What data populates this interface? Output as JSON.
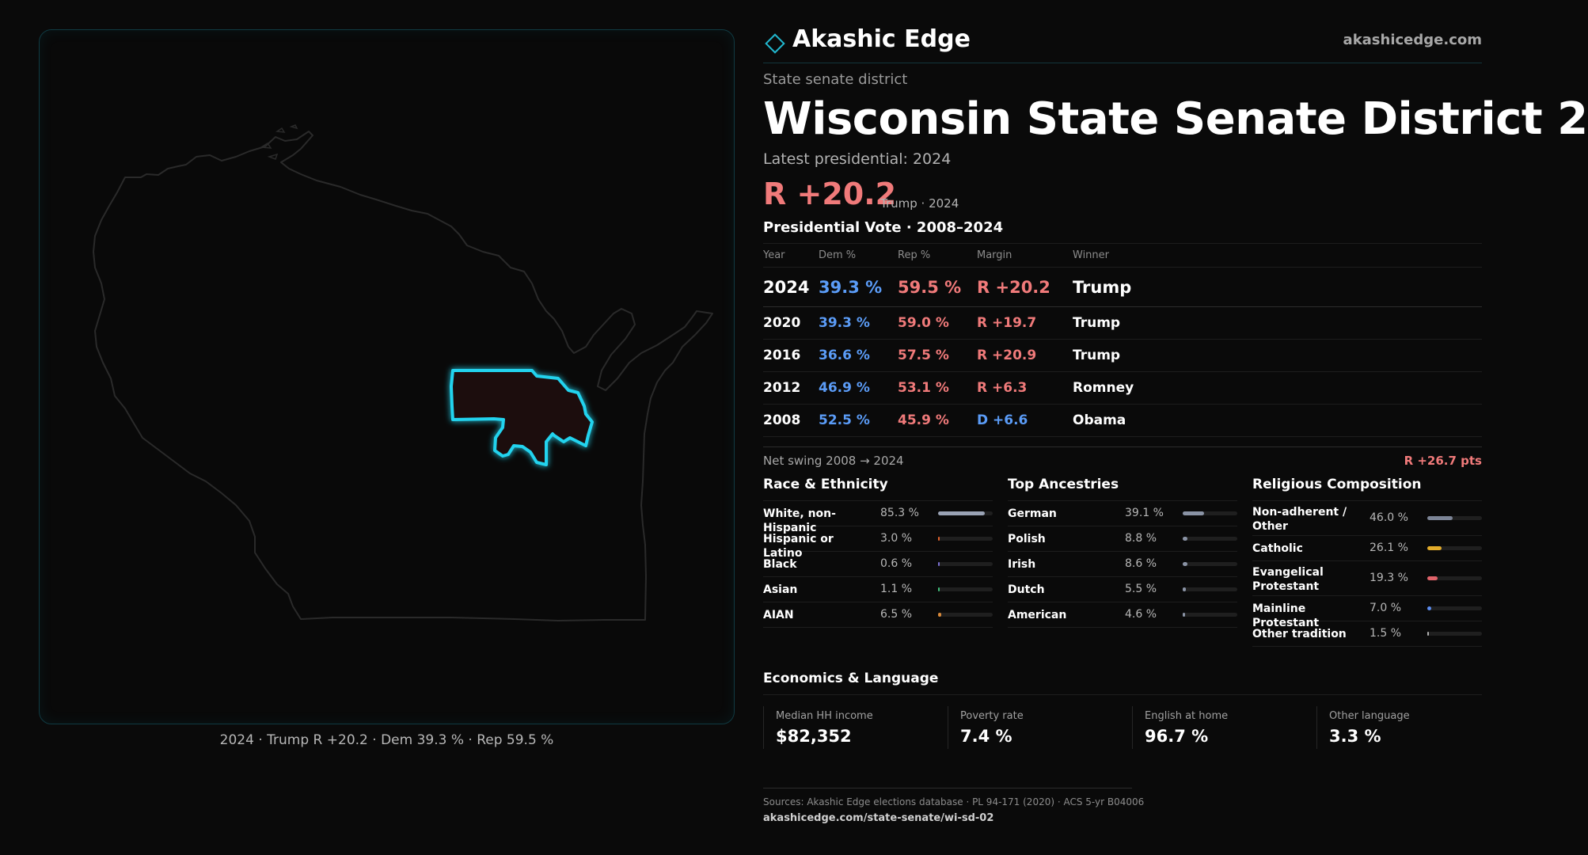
{
  "brand": {
    "name": "Akashic Edge",
    "url": "akashicedge.com"
  },
  "district": {
    "type_label": "State senate district",
    "title": "Wisconsin State Senate District 2",
    "latest_label": "Latest presidential: 2024",
    "margin": "R +20.2",
    "margin_sub": "Trump · 2024"
  },
  "presidential": {
    "heading": "Presidential Vote · 2008–2024",
    "columns": {
      "year": "Year",
      "dem": "Dem %",
      "rep": "Rep %",
      "margin": "Margin",
      "winner": "Winner"
    },
    "rows": [
      {
        "year": "2024",
        "dem": "39.3 %",
        "rep": "59.5 %",
        "margin": "R +20.2",
        "party": "rep",
        "winner": "Trump"
      },
      {
        "year": "2020",
        "dem": "39.3 %",
        "rep": "59.0 %",
        "margin": "R +19.7",
        "party": "rep",
        "winner": "Trump"
      },
      {
        "year": "2016",
        "dem": "36.6 %",
        "rep": "57.5 %",
        "margin": "R +20.9",
        "party": "rep",
        "winner": "Trump"
      },
      {
        "year": "2012",
        "dem": "46.9 %",
        "rep": "53.1 %",
        "margin": "R +6.3",
        "party": "rep",
        "winner": "Romney"
      },
      {
        "year": "2008",
        "dem": "52.5 %",
        "rep": "45.9 %",
        "margin": "D +6.6",
        "party": "dem",
        "winner": "Obama"
      }
    ],
    "swing_label": "Net swing 2008 → 2024",
    "swing_value": "R +26.7 pts"
  },
  "race": {
    "heading": "Race & Ethnicity",
    "items": [
      {
        "label": "White, non-Hispanic",
        "value": "85.3 %",
        "share": 0.853,
        "color": "#9aa3b5"
      },
      {
        "label": "Hispanic or Latino",
        "value": "3.0 %",
        "share": 0.03,
        "color": "#e0602a"
      },
      {
        "label": "Black",
        "value": "0.6 %",
        "share": 0.006,
        "color": "#7a6fd0"
      },
      {
        "label": "Asian",
        "value": "1.1 %",
        "share": 0.011,
        "color": "#3fbf7a"
      },
      {
        "label": "AIAN",
        "value": "6.5 %",
        "share": 0.065,
        "color": "#d98a3a"
      }
    ]
  },
  "ancestry": {
    "heading": "Top Ancestries",
    "items": [
      {
        "label": "German",
        "value": "39.1 %",
        "share": 0.391,
        "color": "#8a93a5"
      },
      {
        "label": "Polish",
        "value": "8.8 %",
        "share": 0.088,
        "color": "#8a93a5"
      },
      {
        "label": "Irish",
        "value": "8.6 %",
        "share": 0.086,
        "color": "#8a93a5"
      },
      {
        "label": "Dutch",
        "value": "5.5 %",
        "share": 0.055,
        "color": "#8a93a5"
      },
      {
        "label": "American",
        "value": "4.6 %",
        "share": 0.046,
        "color": "#8a93a5"
      }
    ]
  },
  "religion": {
    "heading": "Religious Composition",
    "items": [
      {
        "label": "Non-adherent / Other",
        "value": "46.0 %",
        "share": 0.46,
        "color": "#7c8496"
      },
      {
        "label": "Catholic",
        "value": "26.1 %",
        "share": 0.261,
        "color": "#e3ac2a"
      },
      {
        "label": "Evangelical Protestant",
        "value": "19.3 %",
        "share": 0.193,
        "color": "#e0636a"
      },
      {
        "label": "Mainline Protestant",
        "value": "7.0 %",
        "share": 0.07,
        "color": "#5b8cf0"
      },
      {
        "label": "Other tradition",
        "value": "1.5 %",
        "share": 0.015,
        "color": "#b0b0b0"
      }
    ]
  },
  "economics": {
    "heading": "Economics & Language",
    "items": [
      {
        "label": "Median HH income",
        "value": "$82,352"
      },
      {
        "label": "Poverty rate",
        "value": "7.4 %"
      },
      {
        "label": "English at home",
        "value": "96.7 %"
      },
      {
        "label": "Other language",
        "value": "3.3 %"
      }
    ]
  },
  "map": {
    "caption": "2024 · Trump R +20.2 · Dem 39.3 % · Rep 59.5 %",
    "state_outline_color": "#2a2a2a",
    "district_outline_color": "#22d3ee",
    "district_fill_color": "#1a0b0c"
  },
  "sources": {
    "text": "Sources: Akashic Edge elections database · PL 94-171 (2020) · ACS 5-yr B04006",
    "link": "akashicedge.com/state-senate/wi-sd-02"
  }
}
